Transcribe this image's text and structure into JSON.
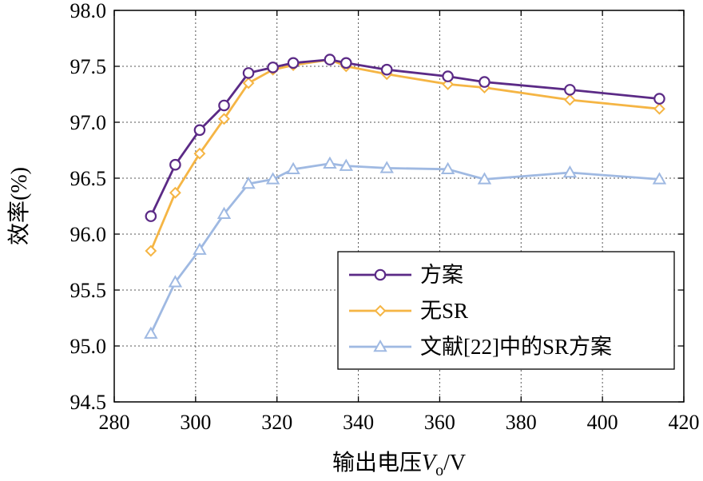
{
  "chart_data": {
    "type": "line",
    "xlabel_main": "输出电压",
    "xlabel_var": "V",
    "xlabel_sub": "o",
    "xlabel_unit": "/V",
    "ylabel": "效率(%)",
    "xlim": [
      280,
      420
    ],
    "ylim": [
      94.5,
      98.0
    ],
    "xticks": [
      280,
      300,
      320,
      340,
      360,
      380,
      400,
      420
    ],
    "yticks": [
      "94.5",
      "95.0",
      "95.5",
      "96.0",
      "96.5",
      "97.0",
      "97.5",
      "98.0"
    ],
    "grid": true,
    "legend_position": "bottom-right",
    "series": [
      {
        "name": "方案",
        "color": "#5b2a86",
        "marker": "circle",
        "x": [
          289,
          295,
          301,
          307,
          313,
          319,
          324,
          333,
          337,
          347,
          362,
          371,
          392,
          414
        ],
        "y": [
          96.16,
          96.62,
          96.93,
          97.15,
          97.44,
          97.49,
          97.53,
          97.56,
          97.53,
          97.47,
          97.41,
          97.36,
          97.29,
          97.21
        ]
      },
      {
        "name": "无SR",
        "color": "#f5b544",
        "marker": "diamond",
        "x": [
          289,
          295,
          301,
          307,
          313,
          319,
          324,
          333,
          337,
          347,
          362,
          371,
          392,
          414
        ],
        "y": [
          95.85,
          96.37,
          96.72,
          97.03,
          97.35,
          97.47,
          97.51,
          97.56,
          97.5,
          97.43,
          97.34,
          97.31,
          97.2,
          97.12
        ]
      },
      {
        "name": "文献[22]中的SR方案",
        "color": "#9fb9e2",
        "marker": "triangle",
        "x": [
          289,
          295,
          301,
          307,
          313,
          319,
          324,
          333,
          337,
          347,
          362,
          371,
          392,
          414
        ],
        "y": [
          95.11,
          95.57,
          95.86,
          96.18,
          96.45,
          96.49,
          96.58,
          96.63,
          96.61,
          96.59,
          96.58,
          96.49,
          96.55,
          96.49
        ]
      }
    ]
  }
}
